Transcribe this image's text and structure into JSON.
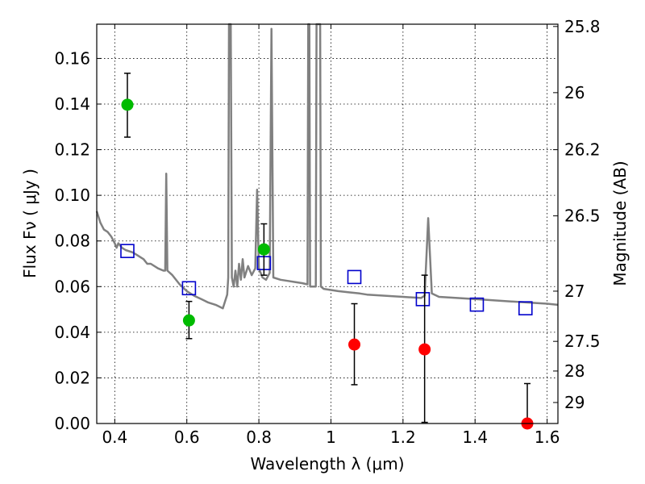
{
  "chart_data": {
    "type": "scatter",
    "title": "",
    "xlabel": "Wavelength  λ (μm)",
    "ylabel": "Flux  Fν  ( μJy )",
    "ylabel_right": "Magnitude (AB)",
    "xlim": [
      0.35,
      1.63
    ],
    "ylim": [
      0.0,
      0.175
    ],
    "grid": true,
    "x_ticks": [
      0.4,
      0.6,
      0.8,
      1.0,
      1.2,
      1.4,
      1.6
    ],
    "x_tick_labels": [
      "0.4",
      "0.6",
      "0.8",
      "1",
      "1.2",
      "1.4",
      "1.6"
    ],
    "y_ticks": [
      0.0,
      0.02,
      0.04,
      0.06,
      0.08,
      0.1,
      0.12,
      0.14,
      0.16
    ],
    "y_tick_labels": [
      "0.00",
      "0.02",
      "0.04",
      "0.06",
      "0.08",
      "0.10",
      "0.12",
      "0.14",
      "0.16"
    ],
    "right_ticks": [
      {
        "label": "25.8",
        "flux": 0.174
      },
      {
        "label": "26",
        "flux": 0.145
      },
      {
        "label": "26.2",
        "flux": 0.12
      },
      {
        "label": "26.5",
        "flux": 0.091
      },
      {
        "label": "27",
        "flux": 0.058
      },
      {
        "label": "27.5",
        "flux": 0.036
      },
      {
        "label": "28",
        "flux": 0.023
      },
      {
        "label": "29",
        "flux": 0.0092
      }
    ],
    "colors": {
      "detections": "#00bb00",
      "upper_limits": "#ff0000",
      "model_points": "#0000cc",
      "model_spectrum": "#808080",
      "error_bars": "#000000"
    },
    "series": [
      {
        "kind": "measured_green",
        "points": [
          {
            "x": 0.435,
            "y": 0.1397,
            "err_low": 0.1255,
            "err_high": 0.1535
          },
          {
            "x": 0.606,
            "y": 0.0452,
            "err_low": 0.0372,
            "err_high": 0.0535
          },
          {
            "x": 0.814,
            "y": 0.0763,
            "err_low": 0.065,
            "err_high": 0.0875
          }
        ]
      },
      {
        "kind": "measured_red",
        "points": [
          {
            "x": 1.065,
            "y": 0.0346,
            "err_low": 0.017,
            "err_high": 0.0525
          },
          {
            "x": 1.26,
            "y": 0.0325,
            "err_low": 0.0005,
            "err_high": 0.065
          },
          {
            "x": 1.545,
            "y": 0.0,
            "err_low": 0.0,
            "err_high": 0.0175
          }
        ]
      },
      {
        "kind": "model_photometry",
        "points": [
          {
            "x": 0.435,
            "y": 0.0756
          },
          {
            "x": 0.606,
            "y": 0.0593
          },
          {
            "x": 0.814,
            "y": 0.0703
          },
          {
            "x": 1.065,
            "y": 0.0642
          },
          {
            "x": 1.255,
            "y": 0.0545
          },
          {
            "x": 1.405,
            "y": 0.0521
          },
          {
            "x": 1.54,
            "y": 0.0505
          }
        ]
      },
      {
        "kind": "model_spectrum",
        "points": [
          [
            0.35,
            0.093
          ],
          [
            0.36,
            0.088
          ],
          [
            0.37,
            0.085
          ],
          [
            0.38,
            0.084
          ],
          [
            0.39,
            0.082
          ],
          [
            0.4,
            0.079
          ],
          [
            0.405,
            0.077
          ],
          [
            0.41,
            0.079
          ],
          [
            0.42,
            0.077
          ],
          [
            0.43,
            0.076
          ],
          [
            0.45,
            0.075
          ],
          [
            0.46,
            0.074
          ],
          [
            0.48,
            0.072
          ],
          [
            0.49,
            0.07
          ],
          [
            0.5,
            0.07
          ],
          [
            0.52,
            0.068
          ],
          [
            0.535,
            0.067
          ],
          [
            0.54,
            0.067
          ],
          [
            0.543,
            0.1095
          ],
          [
            0.546,
            0.067
          ],
          [
            0.56,
            0.065
          ],
          [
            0.58,
            0.061
          ],
          [
            0.6,
            0.058
          ],
          [
            0.62,
            0.056
          ],
          [
            0.64,
            0.0545
          ],
          [
            0.66,
            0.053
          ],
          [
            0.68,
            0.052
          ],
          [
            0.7,
            0.0505
          ],
          [
            0.712,
            0.0565
          ],
          [
            0.715,
            0.064
          ],
          [
            0.717,
            0.175
          ],
          [
            0.722,
            0.175
          ],
          [
            0.725,
            0.064
          ],
          [
            0.73,
            0.06
          ],
          [
            0.735,
            0.067
          ],
          [
            0.74,
            0.06
          ],
          [
            0.745,
            0.07
          ],
          [
            0.75,
            0.063
          ],
          [
            0.755,
            0.072
          ],
          [
            0.76,
            0.064
          ],
          [
            0.77,
            0.069
          ],
          [
            0.78,
            0.065
          ],
          [
            0.79,
            0.068
          ],
          [
            0.795,
            0.1025
          ],
          [
            0.8,
            0.068
          ],
          [
            0.81,
            0.064
          ],
          [
            0.82,
            0.063
          ],
          [
            0.83,
            0.066
          ],
          [
            0.835,
            0.173
          ],
          [
            0.84,
            0.064
          ],
          [
            0.86,
            0.063
          ],
          [
            0.88,
            0.0625
          ],
          [
            0.9,
            0.062
          ],
          [
            0.92,
            0.0615
          ],
          [
            0.935,
            0.061
          ],
          [
            0.937,
            0.175
          ],
          [
            0.94,
            0.175
          ],
          [
            0.942,
            0.06
          ],
          [
            0.95,
            0.06
          ],
          [
            0.958,
            0.06
          ],
          [
            0.96,
            0.175
          ],
          [
            0.97,
            0.175
          ],
          [
            0.972,
            0.06
          ],
          [
            0.98,
            0.059
          ],
          [
            1.0,
            0.0585
          ],
          [
            1.02,
            0.058
          ],
          [
            1.05,
            0.0575
          ],
          [
            1.08,
            0.057
          ],
          [
            1.1,
            0.0565
          ],
          [
            1.15,
            0.056
          ],
          [
            1.2,
            0.0555
          ],
          [
            1.25,
            0.055
          ],
          [
            1.26,
            0.056
          ],
          [
            1.27,
            0.09
          ],
          [
            1.28,
            0.057
          ],
          [
            1.3,
            0.0555
          ],
          [
            1.35,
            0.055
          ],
          [
            1.4,
            0.0545
          ],
          [
            1.45,
            0.054
          ],
          [
            1.5,
            0.0535
          ],
          [
            1.55,
            0.053
          ],
          [
            1.6,
            0.0525
          ],
          [
            1.63,
            0.052
          ]
        ]
      }
    ]
  }
}
